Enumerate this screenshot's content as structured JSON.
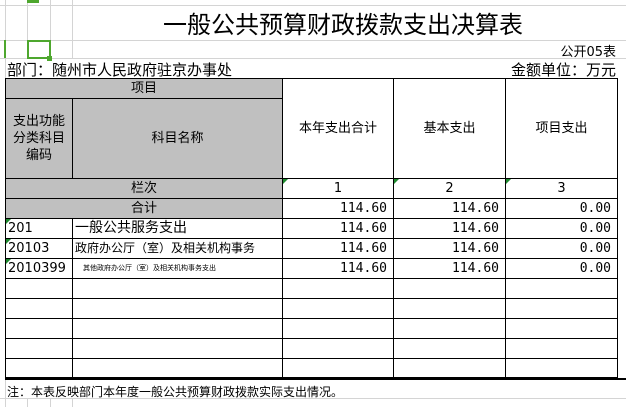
{
  "title": "一般公共预算财政拨款支出决算表",
  "table_no": "公开05表",
  "department": "部门：随州市人民政府驻京办事处",
  "unit": "金额单位：万元",
  "headers": {
    "project": "项目",
    "code": "支出功能分类科目编码",
    "name": "科目名称",
    "total": "本年支出合计",
    "basic": "基本支出",
    "project_exp": "项目支出",
    "column_no": "栏次",
    "col1": "1",
    "col2": "2",
    "col3": "3",
    "sum": "合计"
  },
  "totals": {
    "total": "114.60",
    "basic": "114.60",
    "project": "0.00"
  },
  "rows": [
    {
      "code": "201",
      "name": "一般公共服务支出",
      "total": "114.60",
      "basic": "114.60",
      "project": "0.00"
    },
    {
      "code": "20103",
      "name": "政府办公厅（室）及相关机构事务",
      "total": "114.60",
      "basic": "114.60",
      "project": "0.00"
    },
    {
      "code": "2010399",
      "name": "其他政府办公厅（室）及相关机构事务支出",
      "total": "114.60",
      "basic": "114.60",
      "project": "0.00"
    }
  ],
  "note": "注：本表反映部门本年度一般公共预算财政拨款实际支出情况。",
  "colors": {
    "header_bg": "#c0c0c0",
    "selection": "#4ea72e",
    "grid": "#d4d4d4"
  }
}
